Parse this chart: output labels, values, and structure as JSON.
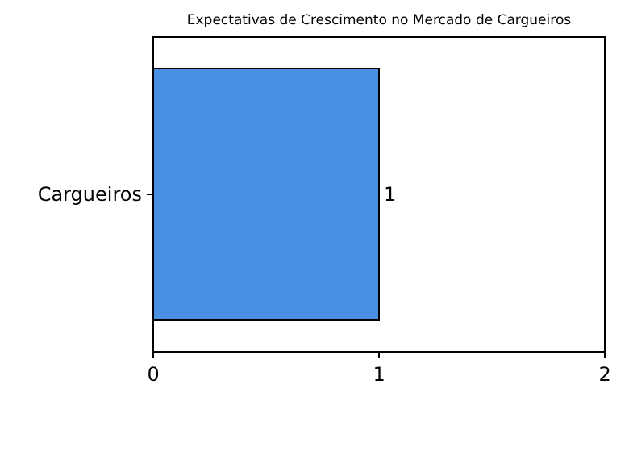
{
  "chart_data": {
    "type": "bar",
    "orientation": "horizontal",
    "title": "Expectativas de Crescimento no Mercado de Cargueiros",
    "categories": [
      "Cargueiros"
    ],
    "values": [
      1
    ],
    "color": "#4a90e2",
    "xlim": [
      0,
      2
    ],
    "xticks": [
      0,
      1,
      2
    ],
    "data_labels": true,
    "grid": false
  }
}
